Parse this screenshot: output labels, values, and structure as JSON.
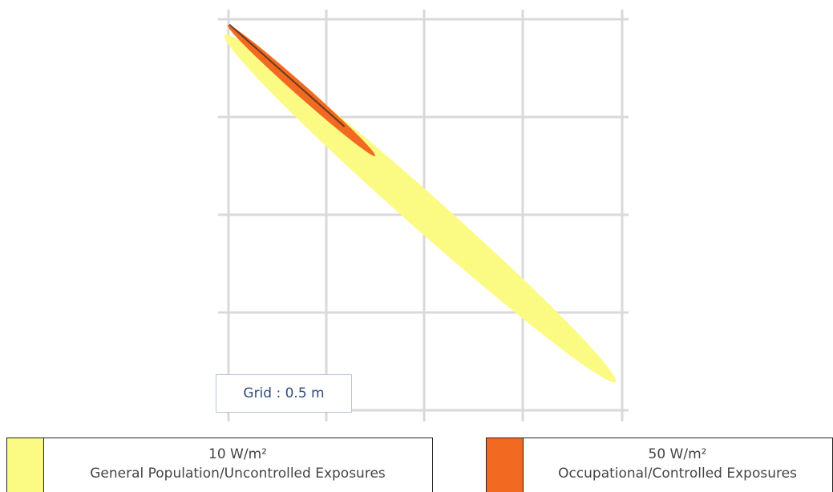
{
  "grid_label": "Grid : 0.5 m",
  "colors": {
    "general": "#fbfb84",
    "occupational": "#f26a22",
    "grid": "#d9d9d9"
  },
  "legend": [
    {
      "value": "10 W/m²",
      "label": "General Population/Uncontrolled Exposures",
      "color": "#fbfb84"
    },
    {
      "value": "50 W/m²",
      "label": "Occupational/Controlled Exposures",
      "color": "#f26a22"
    }
  ]
}
